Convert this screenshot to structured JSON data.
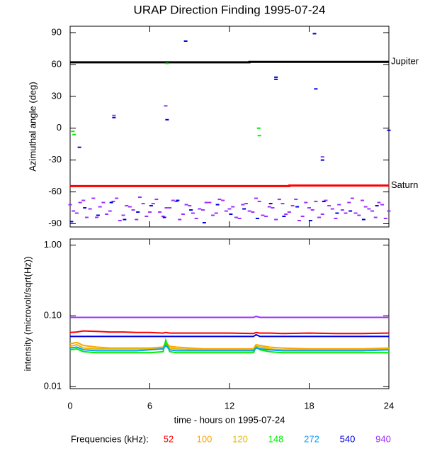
{
  "title": "URAP Direction Finding  1995-07-24",
  "chart_data": [
    {
      "type": "scatter",
      "ylabel": "Azimuthal angle (deg)",
      "xlim": [
        0,
        24
      ],
      "xticks": [
        0,
        6,
        12,
        18,
        24
      ],
      "ylim": [
        -93,
        96
      ],
      "yticks": [
        -90,
        -60,
        -30,
        0,
        30,
        60,
        90
      ],
      "series": [
        {
          "name": "Jupiter",
          "color": "#000000",
          "style": "line",
          "x": [
            0,
            13.5,
            13.5,
            24
          ],
          "values": [
            62,
            62,
            62.5,
            62.5
          ]
        },
        {
          "name": "Saturn",
          "color": "#ff0000",
          "style": "line",
          "x": [
            0,
            16.5,
            16.5,
            24
          ],
          "values": [
            -54.5,
            -54.5,
            -54,
            -54
          ]
        },
        {
          "color": "#9b30ff",
          "style": "points",
          "x": [
            0,
            0.5,
            1,
            1.5,
            2,
            2.5,
            3,
            3.5,
            4,
            4.5,
            5,
            5.5,
            6,
            6.5,
            7,
            7.5,
            8,
            8.5,
            9,
            9.5,
            10,
            10.5,
            11,
            11.5,
            12,
            12.5,
            13,
            13.5,
            14,
            14.5,
            15,
            15.5,
            16,
            16.5,
            17,
            17.5,
            18,
            18.5,
            19,
            19.5,
            20,
            20.5,
            21,
            21.5,
            22,
            22.5,
            23,
            23.5,
            24
          ],
          "values": [
            -72,
            -80,
            -68,
            -76,
            -84,
            -70,
            -78,
            -66,
            -82,
            -74,
            -86,
            -71,
            -79,
            -67,
            -83,
            -75,
            -69,
            -81,
            -73,
            -85,
            -77,
            -70,
            -80,
            -68,
            -76,
            -84,
            -72,
            -78,
            -66,
            -82,
            -74,
            -86,
            -71,
            -79,
            -67,
            -83,
            -75,
            -69,
            -81,
            -73,
            -85,
            -77,
            -70,
            -80,
            -68,
            -76,
            -84,
            -72,
            -78
          ]
        },
        {
          "color": "#9b30ff",
          "style": "points",
          "x": [
            0.25,
            0.75,
            1.25,
            1.75,
            2.25,
            2.75,
            3.25,
            3.75,
            4.25,
            4.75,
            5.25,
            5.75,
            6.25,
            6.75,
            7.25,
            7.75,
            8.25,
            8.75,
            9.25,
            9.75,
            10.25,
            10.75,
            11.25,
            11.75,
            12.25,
            12.75,
            13.25,
            13.75,
            14.25,
            14.75,
            15.25,
            15.75,
            16.25,
            16.75,
            17.25,
            17.75,
            18.25,
            18.75,
            19.25,
            19.75,
            20.25,
            20.75,
            21.25,
            21.75,
            22.25,
            22.75,
            23.25,
            23.75
          ],
          "values": [
            -78,
            -70,
            -84,
            -66,
            -74,
            -81,
            -69,
            -87,
            -73,
            -77,
            -65,
            -83,
            -71,
            -79,
            -75,
            -68,
            -86,
            -72,
            -80,
            -76,
            -70,
            -82,
            -67,
            -78,
            -74,
            -85,
            -71,
            -79,
            -69,
            -83,
            -75,
            -67,
            -81,
            -73,
            -87,
            -70,
            -77,
            -84,
            -68,
            -76,
            -72,
            -80,
            -66,
            -82,
            -74,
            -78,
            -70,
            -85
          ]
        },
        {
          "color": "#0000dd",
          "style": "points",
          "x": [
            0.1,
            1.1,
            2.1,
            3.1,
            4.1,
            5.1,
            6.1,
            7.1,
            8.1,
            9.1,
            10.1,
            11.1,
            12.1,
            13.1,
            14.1,
            15.1,
            16.1,
            17.1,
            18.1,
            19.1,
            20.1,
            21.1,
            22.1,
            23.1
          ],
          "values": [
            -88,
            -75,
            -82,
            -70,
            -86,
            -79,
            -73,
            -84,
            -68,
            -77,
            -89,
            -72,
            -81,
            -76,
            -85,
            -71,
            -83,
            -74,
            -87,
            -69,
            -80,
            -78,
            -86,
            -73
          ]
        },
        {
          "color": "#00ee00",
          "style": "points",
          "x": [
            7.3,
            0.2,
            0.3,
            14.2,
            14.25
          ],
          "values": [
            61,
            -3,
            -6,
            0,
            -7
          ]
        },
        {
          "color": "#0000dd",
          "style": "points",
          "x": [
            3.3,
            7.3,
            15.5,
            18.5,
            19,
            0.7,
            8.7,
            18.4,
            24,
            15.5
          ],
          "values": [
            10,
            8,
            46,
            37,
            -30,
            -18,
            82,
            89,
            -2,
            48
          ]
        },
        {
          "color": "#9b30ff",
          "style": "points",
          "x": [
            7.2,
            19,
            3.3
          ],
          "values": [
            21,
            -27,
            12
          ]
        }
      ]
    },
    {
      "type": "line",
      "log": true,
      "ylabel": "intensity (microvolt/sqrt(Hz))",
      "xlabel": "time - hours on 1995-07-24",
      "legend_title": "Frequencies (kHz):",
      "xlim": [
        0,
        24
      ],
      "xticks": [
        0,
        6,
        12,
        18,
        24
      ],
      "ylim": [
        0.0093,
        1.22
      ],
      "yticks": [
        {
          "value": 0.01,
          "label": "0.01"
        },
        {
          "value": 0.1,
          "label": "0.10"
        },
        {
          "value": 1,
          "label": "1.00"
        }
      ],
      "x": [
        0,
        0.5,
        1,
        2,
        3,
        4,
        5,
        6,
        7,
        7.2,
        7.5,
        8,
        10,
        12,
        13.8,
        14,
        14.3,
        15,
        16,
        18,
        20,
        22,
        24
      ],
      "series": [
        {
          "name": "52",
          "color": "#ff0000",
          "values": [
            0.058,
            0.059,
            0.061,
            0.06,
            0.059,
            0.059,
            0.058,
            0.058,
            0.057,
            0.058,
            0.057,
            0.057,
            0.057,
            0.057,
            0.056,
            0.058,
            0.057,
            0.057,
            0.056,
            0.057,
            0.056,
            0.056,
            0.057
          ]
        },
        {
          "name": "100",
          "color": "#ffa500",
          "values": [
            0.04,
            0.042,
            0.038,
            0.036,
            0.035,
            0.035,
            0.035,
            0.035,
            0.036,
            0.042,
            0.037,
            0.036,
            0.034,
            0.034,
            0.034,
            0.039,
            0.038,
            0.036,
            0.035,
            0.034,
            0.034,
            0.034,
            0.035
          ]
        },
        {
          "name": "120",
          "color": "#e6b800",
          "values": [
            0.037,
            0.039,
            0.035,
            0.034,
            0.034,
            0.034,
            0.034,
            0.034,
            0.035,
            0.04,
            0.035,
            0.034,
            0.033,
            0.033,
            0.033,
            0.037,
            0.036,
            0.034,
            0.033,
            0.033,
            0.033,
            0.033,
            0.034
          ]
        },
        {
          "name": "148",
          "color": "#00ee00",
          "values": [
            0.033,
            0.034,
            0.031,
            0.03,
            0.03,
            0.03,
            0.03,
            0.03,
            0.031,
            0.045,
            0.031,
            0.03,
            0.03,
            0.03,
            0.03,
            0.036,
            0.033,
            0.031,
            0.03,
            0.03,
            0.03,
            0.03,
            0.03
          ]
        },
        {
          "name": "272",
          "color": "#00a0ff",
          "values": [
            0.035,
            0.036,
            0.033,
            0.032,
            0.032,
            0.032,
            0.032,
            0.033,
            0.034,
            0.038,
            0.033,
            0.032,
            0.032,
            0.032,
            0.032,
            0.035,
            0.034,
            0.033,
            0.032,
            0.032,
            0.032,
            0.032,
            0.033
          ]
        },
        {
          "name": "540",
          "color": "#0000dd",
          "values": [
            0.051,
            0.051,
            0.051,
            0.051,
            0.051,
            0.051,
            0.051,
            0.051,
            0.051,
            0.051,
            0.051,
            0.051,
            0.051,
            0.051,
            0.051,
            0.054,
            0.051,
            0.051,
            0.051,
            0.051,
            0.051,
            0.051,
            0.051
          ]
        },
        {
          "name": "940",
          "color": "#9b30ff",
          "values": [
            0.095,
            0.095,
            0.095,
            0.095,
            0.095,
            0.095,
            0.095,
            0.095,
            0.095,
            0.095,
            0.095,
            0.095,
            0.095,
            0.095,
            0.095,
            0.098,
            0.095,
            0.095,
            0.095,
            0.095,
            0.095,
            0.095,
            0.095
          ]
        }
      ]
    }
  ]
}
